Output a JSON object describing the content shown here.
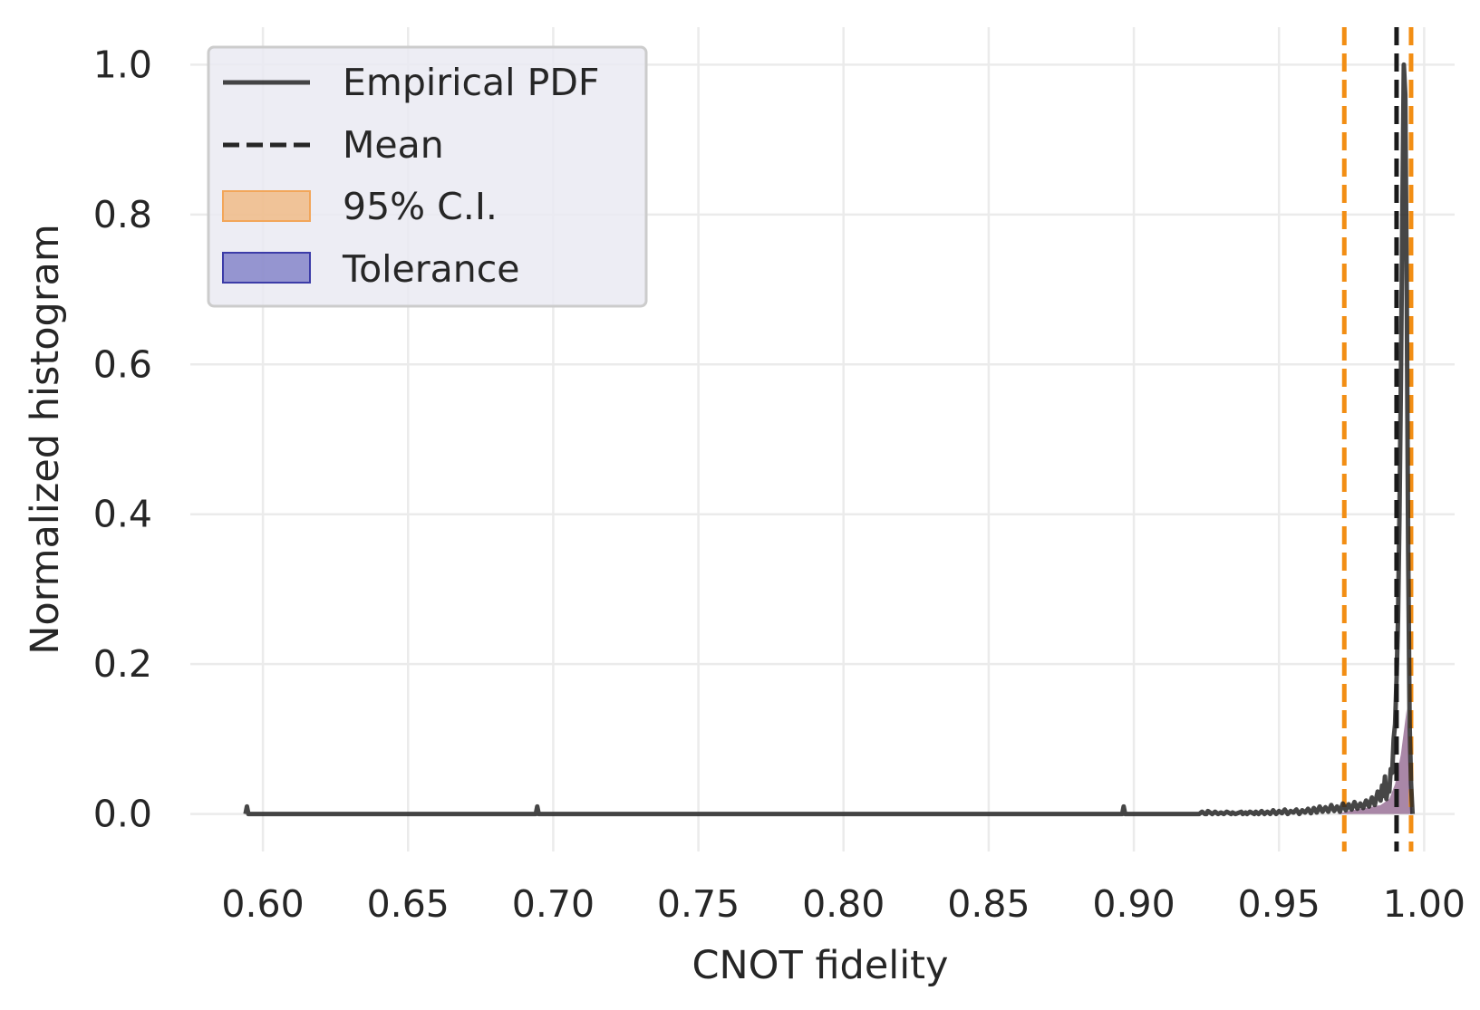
{
  "chart_data": {
    "type": "line",
    "title": "",
    "xlabel": "CNOT fidelity",
    "ylabel": "Normalized histogram",
    "xlim": [
      0.575,
      1.0105
    ],
    "ylim": [
      -0.05,
      1.05
    ],
    "x_ticks": [
      0.6,
      0.65,
      0.7,
      0.75,
      0.8,
      0.85,
      0.9,
      0.95,
      1.0
    ],
    "x_tick_labels": [
      "0.60",
      "0.65",
      "0.70",
      "0.75",
      "0.80",
      "0.85",
      "0.90",
      "0.95",
      "1.00"
    ],
    "y_ticks": [
      0.0,
      0.2,
      0.4,
      0.6,
      0.8,
      1.0
    ],
    "y_tick_labels": [
      "0.0",
      "0.2",
      "0.4",
      "0.6",
      "0.8",
      "1.0"
    ],
    "grid": true,
    "legend_position": "top-left",
    "legend": [
      {
        "label": "Empirical PDF",
        "kind": "solid-line",
        "color": "#262626"
      },
      {
        "label": "Mean",
        "kind": "dashed-line",
        "color": "#262626"
      },
      {
        "label": "95% C.I.",
        "kind": "patch",
        "color": "#f2a65a"
      },
      {
        "label": "Tolerance",
        "kind": "patch",
        "color": "#5a5ab8"
      }
    ],
    "series": [
      {
        "name": "Empirical PDF",
        "color": "#262626",
        "x": [
          0.594,
          0.5945,
          0.595,
          0.6,
          0.694,
          0.6945,
          0.695,
          0.7,
          0.8,
          0.896,
          0.8965,
          0.897,
          0.92,
          0.9225,
          0.9235,
          0.9245,
          0.925,
          0.9255,
          0.927,
          0.928,
          0.929,
          0.93,
          0.931,
          0.932,
          0.9335,
          0.934,
          0.935,
          0.937,
          0.9375,
          0.9385,
          0.939,
          0.94,
          0.9415,
          0.942,
          0.943,
          0.944,
          0.945,
          0.946,
          0.947,
          0.948,
          0.949,
          0.95,
          0.951,
          0.952,
          0.953,
          0.954,
          0.955,
          0.956,
          0.957,
          0.958,
          0.959,
          0.96,
          0.961,
          0.962,
          0.963,
          0.964,
          0.965,
          0.966,
          0.967,
          0.968,
          0.969,
          0.97,
          0.971,
          0.972,
          0.973,
          0.974,
          0.975,
          0.976,
          0.977,
          0.978,
          0.979,
          0.98,
          0.981,
          0.982,
          0.983,
          0.984,
          0.985,
          0.9855,
          0.986,
          0.9865,
          0.987,
          0.9875,
          0.988,
          0.9885,
          0.989,
          0.9895,
          0.99,
          0.9905,
          0.991,
          0.9915,
          0.992,
          0.9925,
          0.993,
          0.9935,
          0.994,
          0.9945,
          0.995,
          0.9955,
          0.996
        ],
        "y": [
          0.0,
          0.01,
          0.0,
          0.0,
          0.0,
          0.01,
          0.0,
          0.0,
          0.0,
          0.0,
          0.01,
          0.0,
          0.0,
          0.0,
          0.003,
          0.0,
          0.0,
          0.004,
          0.0,
          0.003,
          0.0,
          0.002,
          0.0,
          0.003,
          0.0,
          0.002,
          0.0,
          0.003,
          0.0,
          0.002,
          0.0,
          0.003,
          0.0,
          0.003,
          0.0,
          0.004,
          0.0,
          0.003,
          0.0,
          0.005,
          0.0,
          0.004,
          0.001,
          0.006,
          0.0,
          0.004,
          0.002,
          0.006,
          0.0,
          0.005,
          0.002,
          0.007,
          0.001,
          0.008,
          0.002,
          0.01,
          0.003,
          0.009,
          0.003,
          0.012,
          0.004,
          0.01,
          0.003,
          0.014,
          0.005,
          0.013,
          0.006,
          0.016,
          0.007,
          0.014,
          0.008,
          0.018,
          0.01,
          0.022,
          0.012,
          0.03,
          0.018,
          0.038,
          0.024,
          0.05,
          0.02,
          0.035,
          0.03,
          0.06,
          0.055,
          0.1,
          0.12,
          0.18,
          0.26,
          0.4,
          0.58,
          0.8,
          1.0,
          0.96,
          0.7,
          0.35,
          0.12,
          0.04,
          0.0
        ]
      }
    ],
    "mean": 0.9905,
    "ci_95": [
      0.9725,
      0.9955
    ],
    "tolerance_shade": {
      "x": [
        0.97,
        0.975,
        0.98,
        0.985,
        0.988,
        0.99,
        0.991,
        0.992,
        0.993,
        0.994,
        0.995,
        0.996
      ],
      "y": [
        0.0,
        0.005,
        0.008,
        0.012,
        0.02,
        0.04,
        0.06,
        0.08,
        0.11,
        0.14,
        0.05,
        0.0
      ],
      "color": "#8c5f8a"
    }
  }
}
